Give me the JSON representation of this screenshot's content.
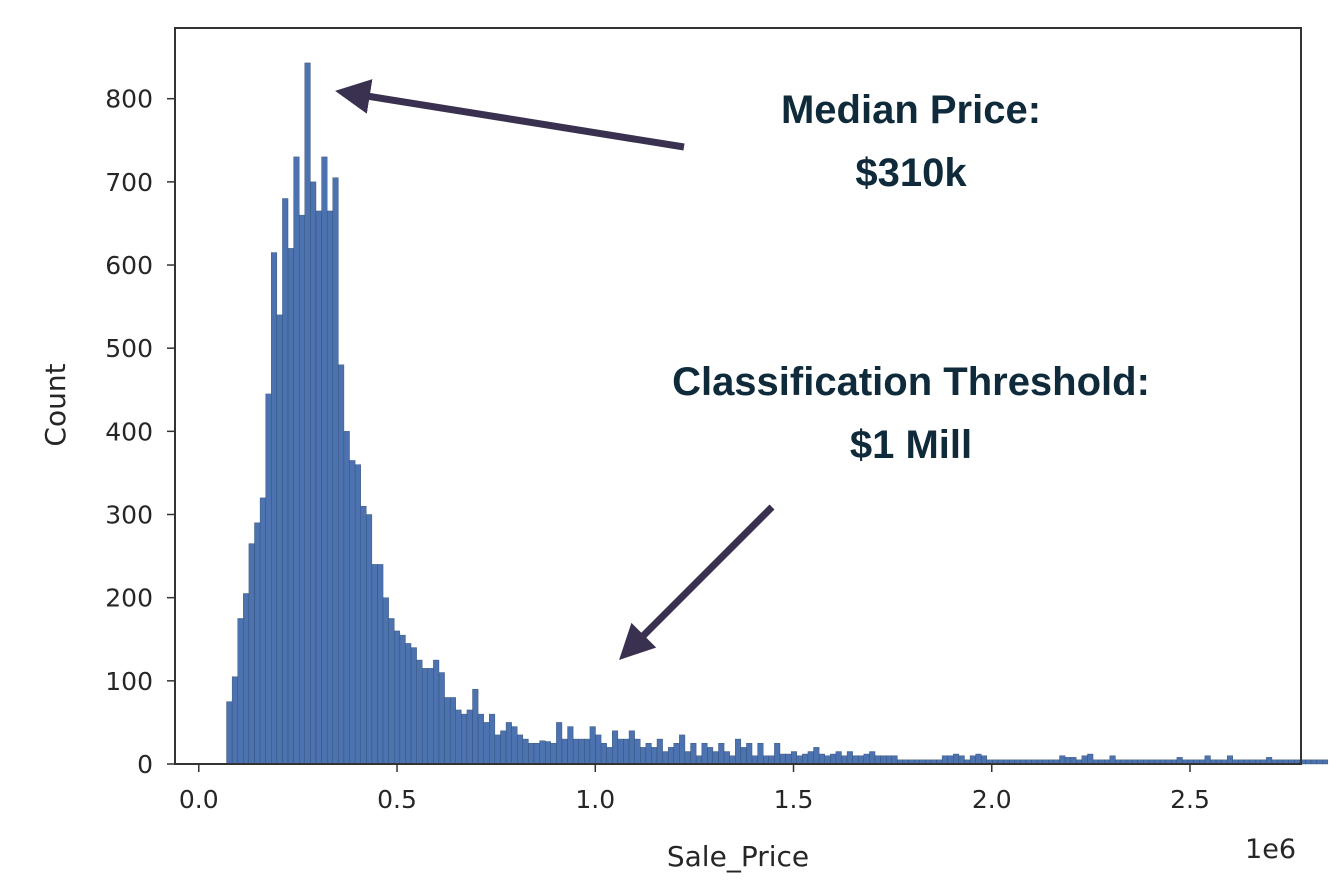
{
  "chart_data": {
    "type": "bar",
    "xlabel": "Sale_Price",
    "ylabel": "Count",
    "x_offset_label": "1e6",
    "xlim": [
      -0.06,
      2.78
    ],
    "ylim": [
      0,
      885
    ],
    "xticks": [
      {
        "value": 0.0,
        "label": "0.0"
      },
      {
        "value": 0.5,
        "label": "0.5"
      },
      {
        "value": 1.0,
        "label": "1.0"
      },
      {
        "value": 1.5,
        "label": "1.5"
      },
      {
        "value": 2.0,
        "label": "2.0"
      },
      {
        "value": 2.5,
        "label": "2.5"
      }
    ],
    "yticks": [
      {
        "value": 0,
        "label": "0"
      },
      {
        "value": 100,
        "label": "100"
      },
      {
        "value": 200,
        "label": "200"
      },
      {
        "value": 300,
        "label": "300"
      },
      {
        "value": 400,
        "label": "400"
      },
      {
        "value": 500,
        "label": "500"
      },
      {
        "value": 600,
        "label": "600"
      },
      {
        "value": 700,
        "label": "700"
      },
      {
        "value": 800,
        "label": "800"
      }
    ],
    "grid": false,
    "bar_color": "#4c72b0",
    "bin_start": 0.07,
    "bin_width": 0.0141,
    "values": [
      75,
      105,
      175,
      205,
      265,
      290,
      320,
      445,
      615,
      540,
      680,
      620,
      730,
      660,
      843,
      700,
      665,
      730,
      665,
      705,
      480,
      400,
      365,
      360,
      310,
      300,
      240,
      240,
      200,
      175,
      160,
      155,
      145,
      140,
      125,
      115,
      115,
      125,
      110,
      80,
      80,
      65,
      60,
      65,
      90,
      60,
      50,
      60,
      35,
      40,
      50,
      45,
      35,
      30,
      25,
      25,
      28,
      27,
      25,
      50,
      30,
      45,
      30,
      30,
      30,
      45,
      35,
      25,
      20,
      40,
      30,
      30,
      40,
      30,
      20,
      25,
      20,
      30,
      15,
      20,
      25,
      35,
      15,
      25,
      10,
      25,
      20,
      15,
      25,
      15,
      10,
      30,
      20,
      25,
      10,
      25,
      10,
      10,
      25,
      12,
      12,
      15,
      10,
      12,
      15,
      20,
      12,
      10,
      12,
      15,
      10,
      15,
      10,
      10,
      12,
      15,
      10,
      10,
      10,
      10,
      5,
      5,
      5,
      5,
      5,
      5,
      5,
      5,
      10,
      10,
      12,
      10,
      5,
      10,
      12,
      10,
      5,
      5,
      5,
      5,
      5,
      5,
      5,
      5,
      5,
      5,
      5,
      5,
      5,
      10,
      8,
      8,
      5,
      10,
      12,
      5,
      5,
      5,
      10,
      5,
      5,
      5,
      5,
      5,
      5,
      5,
      5,
      5,
      5,
      5,
      8,
      5,
      5,
      5,
      5,
      10,
      5,
      5,
      5,
      10,
      5,
      5,
      5,
      5,
      5,
      5,
      8,
      5,
      5,
      5,
      5,
      5,
      5,
      5,
      5,
      5,
      5
    ],
    "annotations": [
      {
        "line1": "Median Price:",
        "line2": "$310k"
      },
      {
        "line1": "Classification Threshold:",
        "line2": "$1 Mill"
      }
    ],
    "annotation_color": "#0f2a3a",
    "arrow_color": "#3a3150"
  }
}
